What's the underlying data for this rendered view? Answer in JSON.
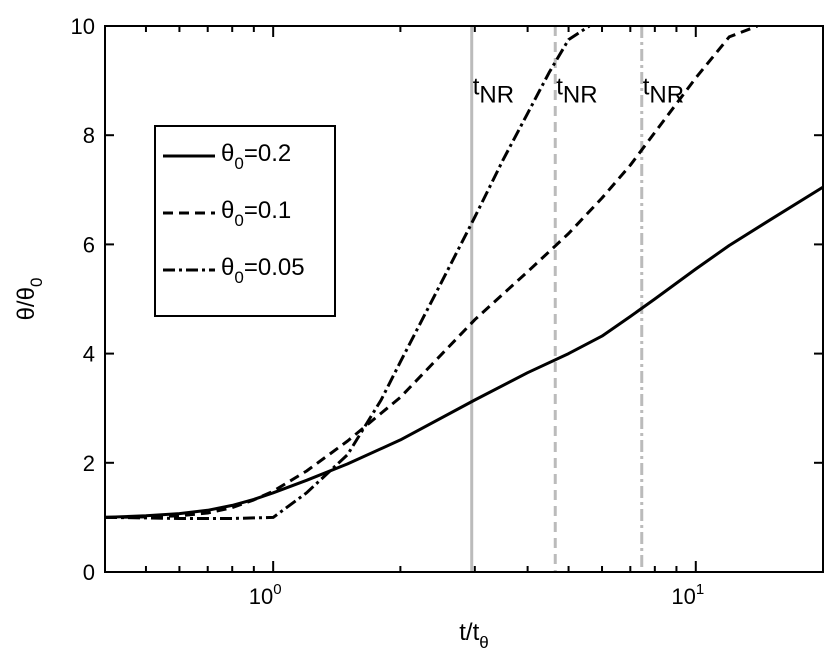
{
  "chart_data": {
    "type": "line",
    "xscale": "log",
    "xlim": [
      0.4,
      20
    ],
    "ylim": [
      0,
      10
    ],
    "xlabel": {
      "main": "t/t",
      "sub": "θ"
    },
    "ylabel": {
      "main": "θ/θ",
      "sub": "0"
    },
    "yticks": [
      0,
      2,
      4,
      6,
      8,
      10
    ],
    "xticks": [
      {
        "value": 1,
        "base": "10",
        "exp": "0"
      },
      {
        "value": 10,
        "base": "10",
        "exp": "1"
      }
    ],
    "grid": false,
    "legend": {
      "placement": "upper-left",
      "entries": [
        {
          "sym": "θ",
          "sub": "0",
          "value": "=0.2"
        },
        {
          "sym": "θ",
          "sub": "0",
          "value": "=0.1"
        },
        {
          "sym": "θ",
          "sub": "0",
          "value": "=0.05"
        }
      ]
    },
    "series": [
      {
        "name": "θ0=0.2",
        "style": "solid",
        "x": [
          0.4,
          0.5,
          0.6,
          0.7,
          0.8,
          0.9,
          1.0,
          1.2,
          1.5,
          2.0,
          3.0,
          4.0,
          5.0,
          6.0,
          7.0,
          8.0,
          10.0,
          12.0,
          15.0,
          20.0
        ],
        "y": [
          1.0,
          1.03,
          1.07,
          1.13,
          1.22,
          1.33,
          1.45,
          1.68,
          1.98,
          2.42,
          3.15,
          3.65,
          4.0,
          4.32,
          4.68,
          5.0,
          5.55,
          5.98,
          6.45,
          7.05
        ]
      },
      {
        "name": "θ0=0.1",
        "style": "dashed",
        "x": [
          0.4,
          0.5,
          0.6,
          0.7,
          0.8,
          0.9,
          1.0,
          1.2,
          1.5,
          2.0,
          3.0,
          4.0,
          5.0,
          6.0,
          7.0,
          8.0,
          10.0,
          12.0,
          14.0
        ],
        "y": [
          1.0,
          1.01,
          1.03,
          1.08,
          1.18,
          1.32,
          1.48,
          1.85,
          2.4,
          3.2,
          4.62,
          5.5,
          6.2,
          6.85,
          7.45,
          8.05,
          9.05,
          9.8,
          10.0
        ]
      },
      {
        "name": "θ0=0.05",
        "style": "dashdot",
        "x": [
          0.4,
          0.5,
          0.6,
          0.7,
          0.8,
          0.9,
          1.0,
          1.2,
          1.5,
          1.8,
          2.0,
          2.5,
          3.0,
          3.5,
          4.0,
          4.5,
          5.0,
          5.6
        ],
        "y": [
          1.0,
          0.99,
          0.98,
          0.98,
          0.98,
          0.99,
          1.0,
          1.45,
          2.15,
          3.15,
          3.85,
          5.3,
          6.5,
          7.55,
          8.4,
          9.15,
          9.75,
          10.0
        ]
      }
    ],
    "vlines": [
      {
        "x": 2.95,
        "style": "solid",
        "color": "#bbbbbb"
      },
      {
        "x": 4.65,
        "style": "dashed",
        "color": "#bbbbbb"
      },
      {
        "x": 7.45,
        "style": "dashdot",
        "color": "#bbbbbb"
      }
    ],
    "annotations": [
      {
        "main": "t",
        "sub": "NR",
        "x": 2.95,
        "y": 8.75
      },
      {
        "main": "t",
        "sub": "NR",
        "x": 4.65,
        "y": 8.75
      },
      {
        "main": "t",
        "sub": "NR",
        "x": 7.45,
        "y": 8.75
      }
    ],
    "colors": {
      "line": "#000000",
      "vline": "#bbbbbb",
      "background": "#ffffff"
    }
  }
}
